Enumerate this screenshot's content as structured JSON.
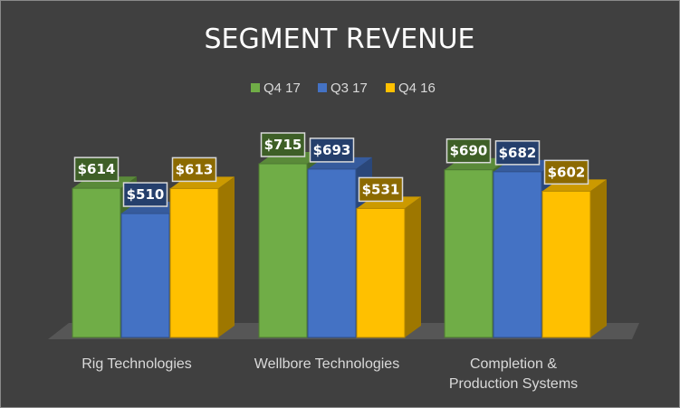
{
  "chart_data": {
    "type": "bar",
    "title": "SEGMENT REVENUE",
    "categories": [
      "Rig Technologies",
      "Wellbore Technologies",
      "Completion & Production Systems"
    ],
    "category_lines": [
      [
        "Rig Technologies"
      ],
      [
        "Wellbore Technologies"
      ],
      [
        "Completion &",
        "Production Systems"
      ]
    ],
    "series": [
      {
        "name": "Q4 17",
        "values": [
          614,
          715,
          690
        ],
        "labels": [
          "$614",
          "$715",
          "$690"
        ],
        "color": "#70ad47"
      },
      {
        "name": "Q3 17",
        "values": [
          510,
          693,
          682
        ],
        "labels": [
          "$510",
          "$693",
          "$682"
        ],
        "color": "#4472c4"
      },
      {
        "name": "Q4 16",
        "values": [
          613,
          531,
          602
        ],
        "labels": [
          "$613",
          "$531",
          "$602"
        ],
        "color": "#ffc000"
      }
    ],
    "ylim": [
      0,
      715
    ],
    "legend_position": "top",
    "grid": false,
    "style": "3d-clustered-column"
  }
}
